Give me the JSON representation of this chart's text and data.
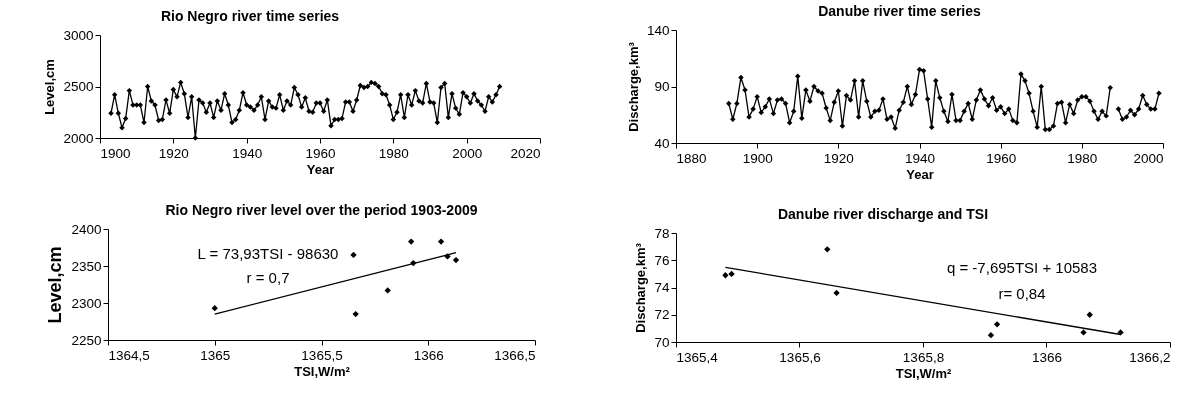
{
  "chart_data": [
    {
      "type": "line",
      "title": "Rio Negro river time series",
      "xlabel": "Year",
      "ylabel": "Level,cm",
      "xlim": [
        1900,
        2020
      ],
      "xticks": [
        1900,
        1920,
        1940,
        1960,
        1980,
        2000,
        2020
      ],
      "ylim": [
        2000,
        3000
      ],
      "yticks": [
        2000,
        2500,
        3000
      ],
      "marker": "diamond",
      "grid": false,
      "series": [
        {
          "color": "#000000",
          "x": [
            1903,
            1904,
            1905,
            1906,
            1907,
            1908,
            1909,
            1910,
            1911,
            1912,
            1913,
            1914,
            1915,
            1916,
            1917,
            1918,
            1919,
            1920,
            1921,
            1922,
            1923,
            1924,
            1925,
            1926,
            1927,
            1928,
            1929,
            1930,
            1931,
            1932,
            1933,
            1934,
            1935,
            1936,
            1937,
            1938,
            1939,
            1940,
            1941,
            1942,
            1943,
            1944,
            1945,
            1946,
            1947,
            1948,
            1949,
            1950,
            1951,
            1952,
            1953,
            1954,
            1955,
            1956,
            1957,
            1958,
            1959,
            1960,
            1961,
            1962,
            1963,
            1964,
            1965,
            1966,
            1967,
            1968,
            1969,
            1970,
            1971,
            1972,
            1973,
            1974,
            1975,
            1976,
            1977,
            1978,
            1979,
            1980,
            1981,
            1982,
            1983,
            1984,
            1985,
            1986,
            1987,
            1988,
            1989,
            1990,
            1991,
            1992,
            1993,
            1994,
            1995,
            1996,
            1997,
            1998,
            1999,
            2000,
            2001,
            2002,
            2003,
            2004,
            2005,
            2006,
            2007,
            2008,
            2009
          ],
          "values": [
            2240,
            2420,
            2240,
            2100,
            2190,
            2460,
            2320,
            2320,
            2320,
            2150,
            2500,
            2360,
            2320,
            2170,
            2180,
            2370,
            2240,
            2470,
            2400,
            2540,
            2430,
            2200,
            2400,
            2000,
            2370,
            2340,
            2250,
            2340,
            2200,
            2360,
            2270,
            2430,
            2320,
            2150,
            2180,
            2270,
            2440,
            2320,
            2300,
            2270,
            2320,
            2400,
            2180,
            2360,
            2300,
            2290,
            2420,
            2270,
            2360,
            2320,
            2490,
            2420,
            2300,
            2390,
            2260,
            2250,
            2340,
            2340,
            2260,
            2370,
            2120,
            2180,
            2180,
            2190,
            2350,
            2350,
            2260,
            2370,
            2510,
            2490,
            2500,
            2540,
            2530,
            2500,
            2430,
            2420,
            2320,
            2180,
            2250,
            2420,
            2200,
            2420,
            2320,
            2460,
            2360,
            2340,
            2530,
            2350,
            2340,
            2150,
            2490,
            2530,
            2200,
            2430,
            2290,
            2230,
            2440,
            2400,
            2340,
            2430,
            2360,
            2320,
            2260,
            2400,
            2350,
            2420,
            2500
          ]
        }
      ]
    },
    {
      "type": "line",
      "title": "Danube river time series",
      "xlabel": "Year",
      "ylabel": "Discharge,km³",
      "xlim": [
        1880,
        2000
      ],
      "xticks": [
        1880,
        1900,
        1920,
        1940,
        1960,
        1980,
        2000
      ],
      "ylim": [
        40,
        140
      ],
      "yticks": [
        40,
        90,
        140
      ],
      "marker": "diamond",
      "grid": false,
      "series": [
        {
          "color": "#000000",
          "x": [
            1893,
            1894,
            1895,
            1896,
            1897,
            1898,
            1899,
            1900,
            1901,
            1902,
            1903,
            1904,
            1905,
            1906,
            1907,
            1908,
            1909,
            1910,
            1911,
            1912,
            1913,
            1914,
            1915,
            1916,
            1917,
            1918,
            1919,
            1920,
            1921,
            1922,
            1923,
            1924,
            1925,
            1926,
            1927,
            1928,
            1929,
            1930,
            1931,
            1932,
            1933,
            1934,
            1935,
            1936,
            1937,
            1938,
            1939,
            1940,
            1941,
            1942,
            1943,
            1944,
            1945,
            1946,
            1947,
            1948,
            1949,
            1950,
            1951,
            1952,
            1953,
            1954,
            1955,
            1956,
            1957,
            1958,
            1959,
            1960,
            1961,
            1962,
            1963,
            1964,
            1965,
            1966,
            1967,
            1968,
            1969,
            1970,
            1971,
            1972,
            1973,
            1974,
            1975,
            1976,
            1977,
            1978,
            1979,
            1980,
            1981,
            1982,
            1983,
            1984,
            1985,
            1986,
            1987,
            1988,
            1989,
            1990,
            1991,
            1992,
            1993,
            1994,
            1995,
            1996,
            1997,
            1998,
            1999
          ],
          "values": [
            75,
            61,
            75,
            98,
            87,
            63,
            70,
            81,
            67,
            72,
            79,
            66,
            78,
            79,
            75,
            58,
            68,
            99,
            62,
            87,
            77,
            90,
            86,
            84,
            71,
            60,
            76,
            86,
            55,
            82,
            78,
            95,
            63,
            95,
            77,
            63,
            68,
            69,
            79,
            61,
            63,
            53,
            69,
            76,
            90,
            74,
            83,
            105,
            104,
            79,
            54,
            95,
            80,
            68,
            59,
            83,
            60,
            60,
            68,
            75,
            61,
            78,
            87,
            79,
            73,
            80,
            69,
            72,
            66,
            70,
            60,
            58,
            101,
            95,
            84,
            68,
            54,
            90,
            52,
            52,
            55,
            75,
            76,
            58,
            74,
            66,
            78,
            81,
            81,
            77,
            68,
            61,
            68,
            64,
            89,
            null,
            70,
            61,
            63,
            69,
            65,
            70,
            82,
            74,
            70,
            70,
            84
          ]
        }
      ]
    },
    {
      "type": "scatter",
      "title": "Rio Negro river level over the period 1903-2009",
      "xlabel": "TSI,W/m²",
      "ylabel": "Level,cm",
      "xlim": [
        1364.5,
        1366.5
      ],
      "xticks": [
        {
          "value": 1364.5,
          "label": "1364,5"
        },
        1365,
        {
          "value": 1365.5,
          "label": "1365,5"
        },
        1366,
        {
          "value": 1366.5,
          "label": "1366,5"
        }
      ],
      "ylim": [
        2250,
        2400
      ],
      "yticks": [
        2250,
        2300,
        2350,
        2400
      ],
      "marker": "diamond",
      "grid": false,
      "annotations": [
        "L = 73,93TSI - 98630",
        "r = 0,7"
      ],
      "series": [
        {
          "color": "#000000",
          "x": [
            1365,
            1365.65,
            1365.66,
            1365.81,
            1365.92,
            1365.93,
            1366.06,
            1366.09,
            1366.13
          ],
          "values": [
            2293,
            2365,
            2285,
            2317,
            2383,
            2354,
            2383,
            2363,
            2358
          ]
        },
        {
          "type": "line",
          "marker": "none",
          "color": "#000000",
          "x": [
            1365,
            1366.13
          ],
          "values": [
            2285,
            2368
          ]
        }
      ]
    },
    {
      "type": "scatter",
      "title": "Danube river  discharge and TSI",
      "xlabel": "TSI,W/m²",
      "ylabel": "Discharge,km³",
      "xlim": [
        1365.4,
        1366.2
      ],
      "xticks": [
        {
          "value": 1365.4,
          "label": "1365,4"
        },
        {
          "value": 1365.6,
          "label": "1365,6"
        },
        {
          "value": 1365.8,
          "label": "1365,8"
        },
        1366,
        {
          "value": 1366.2,
          "label": "1366,2"
        }
      ],
      "ylim": [
        70,
        78
      ],
      "yticks": [
        70,
        72,
        74,
        76,
        78
      ],
      "marker": "diamond",
      "grid": false,
      "annotations": [
        "q = -7,695TSI + 10583",
        "r= 0,84"
      ],
      "series": [
        {
          "color": "#000000",
          "x": [
            1365.48,
            1365.49,
            1365.645,
            1365.66,
            1365.91,
            1365.92,
            1366.06,
            1366.07,
            1366.12
          ],
          "values": [
            74.9,
            75.0,
            76.8,
            73.6,
            70.5,
            71.3,
            70.7,
            72.0,
            70.7
          ]
        },
        {
          "type": "line",
          "marker": "none",
          "color": "#000000",
          "x": [
            1365.48,
            1366.12
          ],
          "values": [
            75.48,
            70.55
          ]
        }
      ]
    }
  ]
}
